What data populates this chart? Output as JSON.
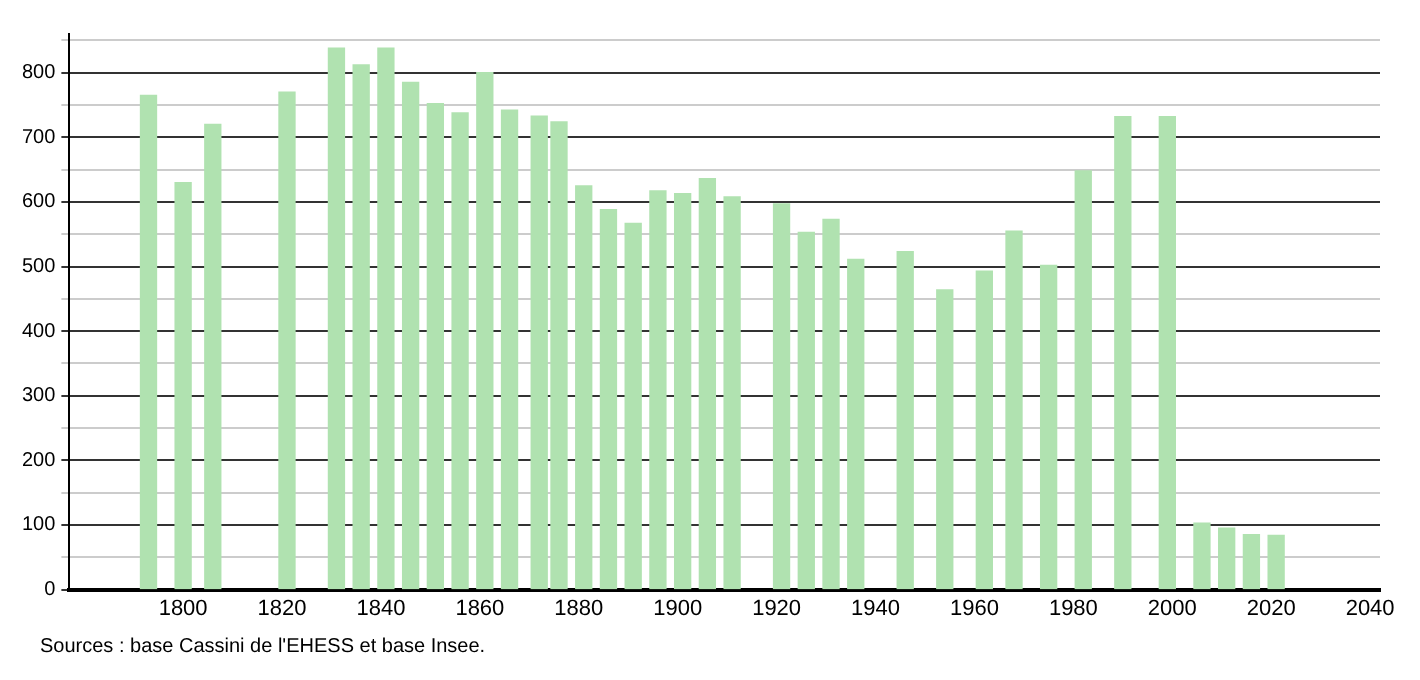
{
  "chart_data": {
    "type": "bar",
    "x": [
      1793,
      1800,
      1806,
      1821,
      1831,
      1836,
      1841,
      1846,
      1851,
      1856,
      1861,
      1866,
      1872,
      1876,
      1881,
      1886,
      1891,
      1896,
      1901,
      1906,
      1911,
      1921,
      1926,
      1931,
      1936,
      1946,
      1954,
      1962,
      1968,
      1975,
      1982,
      1990,
      1999,
      2006,
      2011,
      2016,
      2021
    ],
    "values": [
      765,
      630,
      720,
      770,
      838,
      812,
      838,
      785,
      752,
      738,
      800,
      742,
      733,
      724,
      625,
      588,
      567,
      617,
      613,
      636,
      608,
      597,
      553,
      573,
      511,
      523,
      464,
      493,
      555,
      502,
      648,
      732,
      732,
      103,
      95,
      85,
      84
    ],
    "color": "#b0e2b0",
    "xlim": [
      1777,
      2042
    ],
    "xticks": [
      1800,
      1820,
      1840,
      1860,
      1880,
      1900,
      1920,
      1940,
      1960,
      1980,
      2000,
      2020,
      2040
    ],
    "ylim": [
      0,
      860
    ],
    "yticks": [
      0,
      {
        "value": 50,
        "label": null
      },
      100,
      {
        "value": 150,
        "label": null
      },
      200,
      {
        "value": 250,
        "label": null
      },
      300,
      {
        "value": 350,
        "label": null
      },
      400,
      {
        "value": 450,
        "label": null
      },
      500,
      {
        "value": 550,
        "label": null
      },
      600,
      {
        "value": 650,
        "label": null
      },
      700,
      {
        "value": 750,
        "label": null
      },
      800,
      {
        "value": 850,
        "label": null
      }
    ],
    "grid": "y",
    "legend": false,
    "annotations": [
      "Sources : base Cassini de l'EHESS et base Insee."
    ]
  }
}
